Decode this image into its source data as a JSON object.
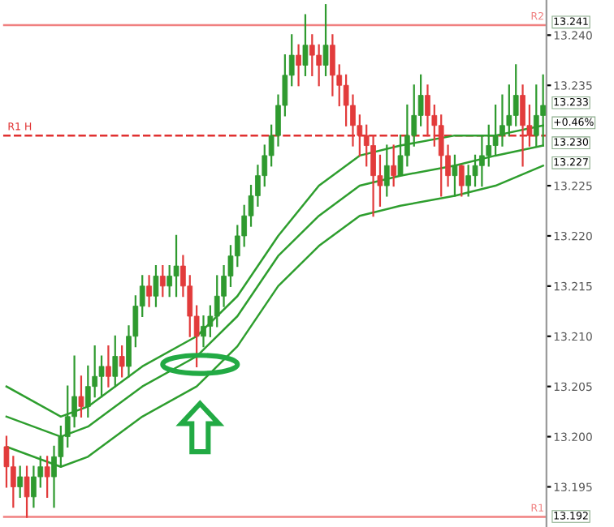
{
  "chart_data": {
    "type": "candlestick",
    "categories": [
      null,
      null,
      null,
      null,
      null,
      null,
      null,
      null,
      null,
      null,
      null,
      null,
      null,
      null,
      null,
      null,
      null,
      null,
      null,
      null,
      null,
      null,
      null,
      null,
      null,
      null,
      null,
      null,
      null,
      null,
      null,
      null,
      null,
      null,
      null,
      null,
      null,
      null,
      null,
      null,
      null,
      null,
      null,
      null,
      null,
      null,
      null,
      null,
      null,
      null,
      null,
      null,
      null,
      null,
      null,
      null,
      null,
      null,
      null,
      null,
      null,
      null,
      null,
      null,
      null,
      null,
      null,
      null,
      null,
      null,
      null,
      null,
      null,
      null,
      null,
      null,
      null,
      null,
      null,
      null
    ],
    "ohlc": [
      [
        13.199,
        13.2,
        13.195,
        13.197
      ],
      [
        13.197,
        13.198,
        13.193,
        13.195
      ],
      [
        13.195,
        13.197,
        13.194,
        13.196
      ],
      [
        13.196,
        13.197,
        13.192,
        13.194
      ],
      [
        13.194,
        13.197,
        13.193,
        13.196
      ],
      [
        13.196,
        13.198,
        13.195,
        13.197
      ],
      [
        13.197,
        13.198,
        13.194,
        13.196
      ],
      [
        13.196,
        13.199,
        13.193,
        13.198
      ],
      [
        13.198,
        13.201,
        13.197,
        13.2
      ],
      [
        13.2,
        13.205,
        13.199,
        13.202
      ],
      [
        13.202,
        13.208,
        13.201,
        13.204
      ],
      [
        13.204,
        13.206,
        13.202,
        13.203
      ],
      [
        13.203,
        13.207,
        13.202,
        13.205
      ],
      [
        13.205,
        13.209,
        13.204,
        13.206
      ],
      [
        13.206,
        13.208,
        13.204,
        13.207
      ],
      [
        13.207,
        13.209,
        13.205,
        13.206
      ],
      [
        13.206,
        13.21,
        13.205,
        13.208
      ],
      [
        13.208,
        13.209,
        13.206,
        13.207
      ],
      [
        13.207,
        13.211,
        13.206,
        13.21
      ],
      [
        13.21,
        13.214,
        13.209,
        13.213
      ],
      [
        13.213,
        13.216,
        13.212,
        13.215
      ],
      [
        13.215,
        13.216,
        13.213,
        13.214
      ],
      [
        13.214,
        13.217,
        13.213,
        13.216
      ],
      [
        13.216,
        13.217,
        13.214,
        13.215
      ],
      [
        13.215,
        13.217,
        13.214,
        13.216
      ],
      [
        13.216,
        13.22,
        13.214,
        13.217
      ],
      [
        13.217,
        13.218,
        13.214,
        13.215
      ],
      [
        13.215,
        13.216,
        13.21,
        13.212
      ],
      [
        13.212,
        13.213,
        13.207,
        13.21
      ],
      [
        13.21,
        13.212,
        13.209,
        13.211
      ],
      [
        13.211,
        13.213,
        13.21,
        13.212
      ],
      [
        13.212,
        13.216,
        13.211,
        13.214
      ],
      [
        13.214,
        13.217,
        13.213,
        13.216
      ],
      [
        13.216,
        13.219,
        13.215,
        13.218
      ],
      [
        13.218,
        13.221,
        13.217,
        13.22
      ],
      [
        13.22,
        13.223,
        13.219,
        13.222
      ],
      [
        13.222,
        13.225,
        13.221,
        13.224
      ],
      [
        13.224,
        13.227,
        13.223,
        13.226
      ],
      [
        13.226,
        13.229,
        13.225,
        13.228
      ],
      [
        13.228,
        13.231,
        13.227,
        13.23
      ],
      [
        13.23,
        13.234,
        13.229,
        13.233
      ],
      [
        13.233,
        13.238,
        13.232,
        13.236
      ],
      [
        13.236,
        13.24,
        13.235,
        13.238
      ],
      [
        13.238,
        13.239,
        13.235,
        13.237
      ],
      [
        13.237,
        13.242,
        13.236,
        13.239
      ],
      [
        13.239,
        13.24,
        13.236,
        13.238
      ],
      [
        13.238,
        13.239,
        13.235,
        13.237
      ],
      [
        13.237,
        13.243,
        13.236,
        13.239
      ],
      [
        13.239,
        13.24,
        13.234,
        13.236
      ],
      [
        13.236,
        13.237,
        13.233,
        13.235
      ],
      [
        13.235,
        13.236,
        13.231,
        13.233
      ],
      [
        13.233,
        13.234,
        13.229,
        13.231
      ],
      [
        13.231,
        13.232,
        13.228,
        13.23
      ],
      [
        13.23,
        13.231,
        13.227,
        13.229
      ],
      [
        13.229,
        13.23,
        13.222,
        13.226
      ],
      [
        13.226,
        13.228,
        13.223,
        13.225
      ],
      [
        13.225,
        13.229,
        13.224,
        13.227
      ],
      [
        13.227,
        13.229,
        13.225,
        13.226
      ],
      [
        13.226,
        13.23,
        13.226,
        13.228
      ],
      [
        13.228,
        13.233,
        13.227,
        13.23
      ],
      [
        13.23,
        13.235,
        13.229,
        13.232
      ],
      [
        13.232,
        13.236,
        13.231,
        13.234
      ],
      [
        13.234,
        13.235,
        13.23,
        13.232
      ],
      [
        13.232,
        13.233,
        13.229,
        13.231
      ],
      [
        13.231,
        13.232,
        13.224,
        13.228
      ],
      [
        13.228,
        13.229,
        13.225,
        13.226
      ],
      [
        13.226,
        13.228,
        13.224,
        13.227
      ],
      [
        13.227,
        13.227,
        13.224,
        13.225
      ],
      [
        13.225,
        13.227,
        13.224,
        13.226
      ],
      [
        13.226,
        13.228,
        13.225,
        13.227
      ],
      [
        13.227,
        13.23,
        13.225,
        13.228
      ],
      [
        13.228,
        13.231,
        13.227,
        13.229
      ],
      [
        13.229,
        13.233,
        13.228,
        13.23
      ],
      [
        13.23,
        13.234,
        13.229,
        13.231
      ],
      [
        13.231,
        13.235,
        13.23,
        13.232
      ],
      [
        13.232,
        13.237,
        13.231,
        13.234
      ],
      [
        13.234,
        13.235,
        13.227,
        13.231
      ],
      [
        13.231,
        13.233,
        13.229,
        13.23
      ],
      [
        13.23,
        13.235,
        13.229,
        13.232
      ],
      [
        13.232,
        13.236,
        13.229,
        13.233
      ]
    ],
    "colors": [
      "#e23b3b",
      "#e23b3b",
      "#2f9a2f",
      "#e23b3b",
      "#2f9a2f",
      "#2f9a2f",
      "#e23b3b",
      "#2f9a2f",
      "#2f9a2f",
      "#2f9a2f",
      "#2f9a2f",
      "#e23b3b",
      "#2f9a2f",
      "#2f9a2f",
      "#2f9a2f",
      "#e23b3b",
      "#2f9a2f",
      "#e23b3b",
      "#2f9a2f",
      "#2f9a2f",
      "#2f9a2f",
      "#e23b3b",
      "#2f9a2f",
      "#e23b3b",
      "#2f9a2f",
      "#2f9a2f",
      "#e23b3b",
      "#e23b3b",
      "#e23b3b",
      "#2f9a2f",
      "#2f9a2f",
      "#2f9a2f",
      "#2f9a2f",
      "#2f9a2f",
      "#2f9a2f",
      "#2f9a2f",
      "#2f9a2f",
      "#2f9a2f",
      "#2f9a2f",
      "#2f9a2f",
      "#2f9a2f",
      "#2f9a2f",
      "#2f9a2f",
      "#e23b3b",
      "#2f9a2f",
      "#e23b3b",
      "#e23b3b",
      "#2f9a2f",
      "#e23b3b",
      "#e23b3b",
      "#e23b3b",
      "#e23b3b",
      "#e23b3b",
      "#e23b3b",
      "#e23b3b",
      "#e23b3b",
      "#2f9a2f",
      "#e23b3b",
      "#2f9a2f",
      "#2f9a2f",
      "#2f9a2f",
      "#2f9a2f",
      "#e23b3b",
      "#e23b3b",
      "#e23b3b",
      "#e23b3b",
      "#2f9a2f",
      "#e23b3b",
      "#2f9a2f",
      "#2f9a2f",
      "#2f9a2f",
      "#2f9a2f",
      "#2f9a2f",
      "#2f9a2f",
      "#2f9a2f",
      "#2f9a2f",
      "#e23b3b",
      "#e23b3b",
      "#2f9a2f",
      "#2f9a2f"
    ],
    "series": [
      {
        "type": "line",
        "color": "#2e9e2e",
        "values": [
          13.205,
          null,
          null,
          null,
          null,
          null,
          null,
          null,
          13.202,
          null,
          null,
          null,
          13.203,
          null,
          null,
          null,
          null,
          null,
          null,
          null,
          13.207,
          null,
          null,
          null,
          null,
          null,
          null,
          null,
          13.21,
          null,
          null,
          null,
          null,
          null,
          13.214,
          null,
          null,
          null,
          null,
          null,
          13.22,
          null,
          null,
          null,
          null,
          null,
          13.225,
          null,
          null,
          null,
          null,
          null,
          13.228,
          null,
          null,
          null,
          null,
          null,
          13.229,
          null,
          null,
          null,
          null,
          null,
          null,
          null,
          13.23,
          null,
          null,
          null,
          null,
          null,
          13.23,
          null,
          null,
          null,
          null,
          null,
          null,
          13.231
        ]
      },
      {
        "type": "line",
        "color": "#2e9e2e",
        "values": [
          13.202,
          null,
          null,
          null,
          null,
          null,
          null,
          null,
          13.2,
          null,
          null,
          null,
          13.201,
          null,
          null,
          null,
          null,
          null,
          null,
          null,
          13.205,
          null,
          null,
          null,
          null,
          null,
          null,
          null,
          13.208,
          null,
          null,
          null,
          null,
          null,
          13.212,
          null,
          null,
          null,
          null,
          null,
          13.218,
          null,
          null,
          null,
          null,
          null,
          13.222,
          null,
          null,
          null,
          null,
          null,
          13.225,
          null,
          null,
          null,
          null,
          null,
          13.226,
          null,
          null,
          null,
          null,
          null,
          null,
          null,
          13.227,
          null,
          null,
          null,
          null,
          null,
          13.228,
          null,
          null,
          null,
          null,
          null,
          null,
          13.229
        ]
      },
      {
        "type": "line",
        "color": "#2e9e2e",
        "values": [
          13.199,
          null,
          null,
          null,
          null,
          null,
          null,
          null,
          13.197,
          null,
          null,
          null,
          13.198,
          null,
          null,
          null,
          null,
          null,
          null,
          null,
          13.202,
          null,
          null,
          null,
          null,
          null,
          null,
          null,
          13.205,
          null,
          null,
          null,
          null,
          null,
          13.209,
          null,
          null,
          null,
          null,
          null,
          13.215,
          null,
          null,
          null,
          null,
          null,
          13.219,
          null,
          null,
          null,
          null,
          null,
          13.222,
          null,
          null,
          null,
          null,
          null,
          13.223,
          null,
          null,
          null,
          null,
          null,
          null,
          null,
          13.224,
          null,
          null,
          null,
          null,
          null,
          13.225,
          null,
          null,
          null,
          null,
          null,
          null,
          13.227
        ]
      }
    ],
    "ylim": [
      13.191,
      13.2435
    ],
    "yticks": [
      {
        "value": 13.195,
        "label": "13.195"
      },
      {
        "value": 13.2,
        "label": "13.200"
      },
      {
        "value": 13.205,
        "label": "13.205"
      },
      {
        "value": 13.21,
        "label": "13.210"
      },
      {
        "value": 13.215,
        "label": "13.215"
      },
      {
        "value": 13.22,
        "label": "13.220"
      },
      {
        "value": 13.225,
        "label": "13.225"
      },
      {
        "value": 13.235,
        "label": "13.235"
      },
      {
        "value": 13.24,
        "label": "13.240"
      }
    ],
    "ref_lines": [
      {
        "axis": "y",
        "value": 13.241,
        "label": "R2",
        "color": "#f08080",
        "line_style": "solid"
      },
      {
        "axis": "y",
        "value": 13.23,
        "label": "R1 H",
        "color": "#e03030",
        "line_style": "dashed"
      },
      {
        "axis": "y",
        "value": 13.192,
        "label": "R1",
        "color": "#f08080",
        "line_style": "solid"
      }
    ],
    "annotations": [
      "13.241",
      "13.233",
      "+0.46%",
      "13.230",
      "13.227",
      "13.192"
    ],
    "grid": false
  }
}
